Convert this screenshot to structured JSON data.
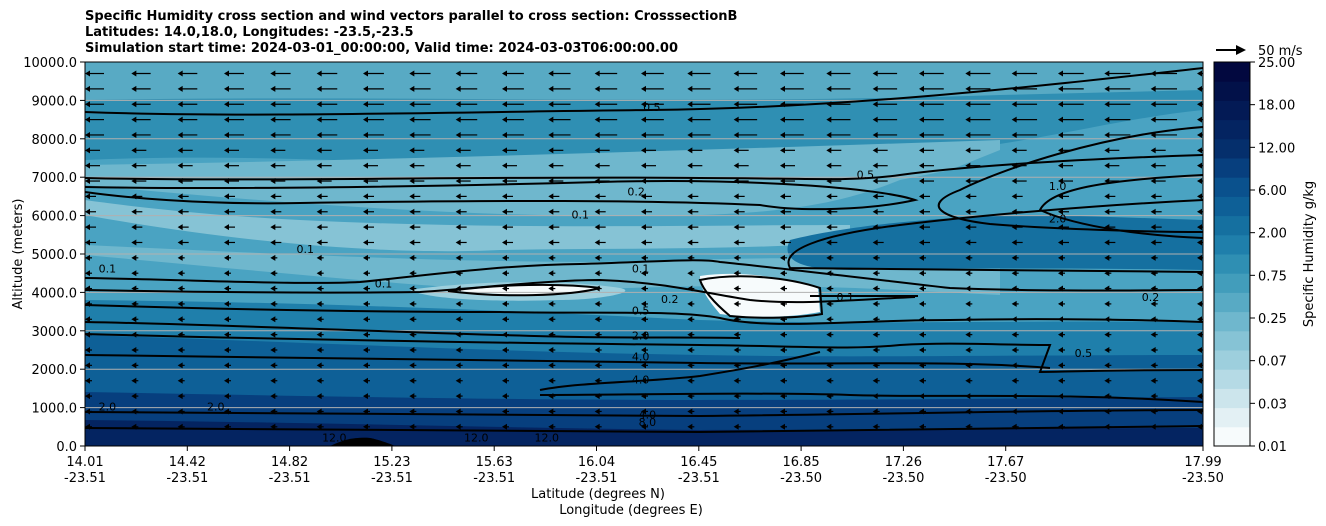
{
  "header": {
    "title_line1": "Specific Humidity cross section and wind vectors parallel to cross section: CrosssectionB",
    "title_line2": "Latitudes: 14.0,18.0, Longitudes: -23.5,-23.5",
    "title_line3": "Simulation start time: 2024-03-01_00:00:00, Valid time: 2024-03-03T06:00:00.00"
  },
  "chart_data": {
    "type": "contour",
    "xlabel": "Latitude (degrees N)",
    "xlabel2": "Longitude (degrees E)",
    "ylabel": "Altitude (meters)",
    "ylim": [
      0,
      10000
    ],
    "xlim_index": [
      0,
      1
    ],
    "x_ticks": [
      {
        "lat": "14.01",
        "lon": "-23.51"
      },
      {
        "lat": "14.42",
        "lon": "-23.51"
      },
      {
        "lat": "14.82",
        "lon": "-23.51"
      },
      {
        "lat": "15.23",
        "lon": "-23.51"
      },
      {
        "lat": "15.63",
        "lon": "-23.51"
      },
      {
        "lat": "16.04",
        "lon": "-23.51"
      },
      {
        "lat": "16.45",
        "lon": "-23.51"
      },
      {
        "lat": "16.85",
        "lon": "-23.50"
      },
      {
        "lat": "17.26",
        "lon": "-23.50"
      },
      {
        "lat": "17.67",
        "lon": "-23.50"
      },
      {
        "lat": "17.99",
        "lon": "-23.50"
      }
    ],
    "y_ticks": [
      "0.0",
      "1000.0",
      "2000.0",
      "3000.0",
      "4000.0",
      "5000.0",
      "6000.0",
      "7000.0",
      "8000.0",
      "9000.0",
      "10000.0"
    ],
    "grid": "horizontal",
    "colorbar": {
      "label": "Specific Humidity g/kg",
      "ticks": [
        "0.01",
        "0.03",
        "0.07",
        "0.25",
        "0.75",
        "2.00",
        "6.00",
        "12.00",
        "18.00",
        "25.00"
      ],
      "colors": [
        "#f7fbfc",
        "#e3f0f4",
        "#cce5ec",
        "#b5dae5",
        "#9dcfdd",
        "#86c3d5",
        "#6fb7cd",
        "#58aac4",
        "#429dbb",
        "#2f8fb3",
        "#1f7fab",
        "#1570a0",
        "#0e6097",
        "#0a518d",
        "#073f7e",
        "#052f6c",
        "#042461",
        "#031a55",
        "#021149",
        "#02083f"
      ]
    },
    "quiver_key": "50 m/s",
    "contour_labels": [
      {
        "text": "0.5",
        "x": 0.507,
        "y": 8800
      },
      {
        "text": "0.2",
        "x": 0.493,
        "y": 6600
      },
      {
        "text": "0.5",
        "x": 0.698,
        "y": 7050
      },
      {
        "text": "1.0",
        "x": 0.87,
        "y": 6750
      },
      {
        "text": "2.0",
        "x": 0.87,
        "y": 5900
      },
      {
        "text": "0.1",
        "x": 0.443,
        "y": 6000
      },
      {
        "text": "0.1",
        "x": 0.197,
        "y": 5100
      },
      {
        "text": "0.1",
        "x": 0.02,
        "y": 4600
      },
      {
        "text": "0.1",
        "x": 0.267,
        "y": 4200
      },
      {
        "text": "0.1",
        "x": 0.497,
        "y": 4600
      },
      {
        "text": "0.2",
        "x": 0.523,
        "y": 3800
      },
      {
        "text": "0.5",
        "x": 0.497,
        "y": 3500
      },
      {
        "text": "2.0",
        "x": 0.497,
        "y": 2850
      },
      {
        "text": "4.0",
        "x": 0.497,
        "y": 2300
      },
      {
        "text": "4.0",
        "x": 0.497,
        "y": 1700
      },
      {
        "text": "4.0",
        "x": 0.503,
        "y": 800
      },
      {
        "text": "8.0",
        "x": 0.503,
        "y": 600
      },
      {
        "text": "2.0",
        "x": 0.02,
        "y": 1000
      },
      {
        "text": "2.0",
        "x": 0.117,
        "y": 1000
      },
      {
        "text": "0.5",
        "x": 0.893,
        "y": 2400
      },
      {
        "text": "0.2",
        "x": 0.953,
        "y": 3850
      },
      {
        "text": "0.1",
        "x": 0.68,
        "y": 3850
      },
      {
        "text": "12.0",
        "x": 0.223,
        "y": 200
      },
      {
        "text": "12.0",
        "x": 0.35,
        "y": 200
      },
      {
        "text": "12.0",
        "x": 0.413,
        "y": 200
      }
    ]
  }
}
